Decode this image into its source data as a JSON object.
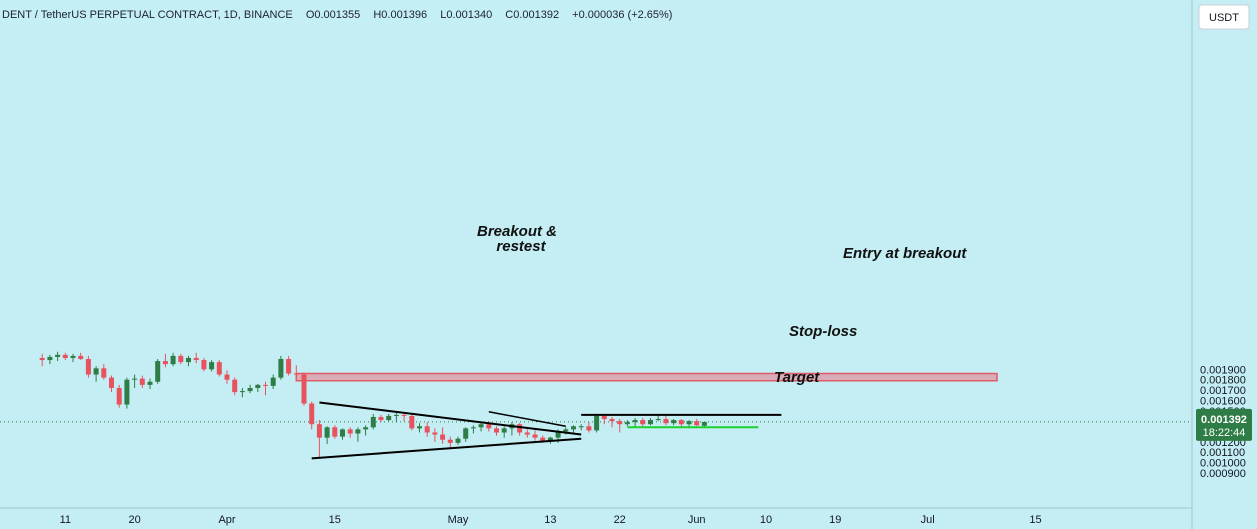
{
  "header": {
    "symbol": "DENT / TetherUS PERPETUAL CONTRACT, 1D, BINANCE",
    "open": "O0.001355",
    "high": "H0.001396",
    "low": "L0.001340",
    "close": "C0.001392",
    "change": "+0.000036 (+2.65%)"
  },
  "currency_button": "USDT",
  "price_badge": {
    "price": "0.001392",
    "countdown": "18:22:44"
  },
  "colors": {
    "background": "#c4eef3",
    "up": "#2f7d46",
    "down": "#e8525e",
    "target_fill": "#d9adb7",
    "target_border": "#e05a68",
    "stoploss": "#1bd12c",
    "lines": "#000000"
  },
  "annotations": {
    "target": "Target",
    "breakout_1": "Breakout &",
    "breakout_2": "restest",
    "entry": "Entry at breakout",
    "stoploss": "Stop-loss"
  },
  "chart_data": {
    "type": "candlestick",
    "y_ticks": [
      "0.001900",
      "0.001800",
      "0.001700",
      "0.001600",
      "0.001500",
      "0.001300",
      "0.001200",
      "0.001100",
      "0.001000",
      "0.000900"
    ],
    "y_tick_values": [
      0.0019,
      0.0018,
      0.0017,
      0.0016,
      0.0015,
      0.0013,
      0.0012,
      0.0011,
      0.001,
      0.0009
    ],
    "x_labels": [
      "11",
      "20",
      "Apr",
      "15",
      "May",
      "13",
      "22",
      "Jun",
      "10",
      "19",
      "Jul",
      "15"
    ],
    "x_label_days": [
      -21,
      -12,
      0,
      14,
      30,
      42,
      51,
      61,
      70,
      79,
      91,
      105
    ],
    "x_axis_origin": "Apr",
    "ylim": [
      0.00087,
      0.00207
    ],
    "last_price": 0.001392,
    "candles": [
      [
        -24,
        0.00201,
        0.00205,
        0.00193,
        0.00199
      ],
      [
        -23,
        0.00199,
        0.00204,
        0.00195,
        0.00202
      ],
      [
        -22,
        0.00202,
        0.00207,
        0.00198,
        0.00204
      ],
      [
        -21,
        0.00204,
        0.00206,
        0.00199,
        0.00201
      ],
      [
        -20,
        0.00201,
        0.00205,
        0.00197,
        0.00203
      ],
      [
        -19,
        0.00203,
        0.00206,
        0.00199,
        0.002
      ],
      [
        -18,
        0.002,
        0.00203,
        0.00182,
        0.00185
      ],
      [
        -17,
        0.00185,
        0.00193,
        0.00178,
        0.00191
      ],
      [
        -16,
        0.00191,
        0.00195,
        0.0018,
        0.00182
      ],
      [
        -15,
        0.00182,
        0.00184,
        0.00168,
        0.00172
      ],
      [
        -14,
        0.00172,
        0.00175,
        0.00153,
        0.00156
      ],
      [
        -13,
        0.00156,
        0.00182,
        0.00152,
        0.0018
      ],
      [
        -12,
        0.0018,
        0.00185,
        0.00172,
        0.00181
      ],
      [
        -11,
        0.00181,
        0.00184,
        0.00172,
        0.00175
      ],
      [
        -10,
        0.00175,
        0.00181,
        0.00171,
        0.00178
      ],
      [
        -9,
        0.00178,
        0.002,
        0.00176,
        0.00198
      ],
      [
        -8,
        0.00198,
        0.00205,
        0.00192,
        0.00195
      ],
      [
        -7,
        0.00195,
        0.00206,
        0.00193,
        0.00203
      ],
      [
        -6,
        0.00203,
        0.00205,
        0.00195,
        0.00197
      ],
      [
        -5,
        0.00197,
        0.00203,
        0.00193,
        0.00201
      ],
      [
        -4,
        0.00201,
        0.00206,
        0.00196,
        0.00199
      ],
      [
        -3,
        0.00199,
        0.00201,
        0.00188,
        0.0019
      ],
      [
        -2,
        0.0019,
        0.00199,
        0.00188,
        0.00197
      ],
      [
        -1,
        0.00197,
        0.00199,
        0.00183,
        0.00185
      ],
      [
        0,
        0.00185,
        0.00189,
        0.00176,
        0.0018
      ],
      [
        1,
        0.0018,
        0.00182,
        0.00165,
        0.00168
      ],
      [
        2,
        0.00168,
        0.00172,
        0.00163,
        0.00169
      ],
      [
        3,
        0.00169,
        0.00175,
        0.00167,
        0.00172
      ],
      [
        4,
        0.00172,
        0.00176,
        0.00168,
        0.00175
      ],
      [
        5,
        0.00175,
        0.00178,
        0.00165,
        0.00174
      ],
      [
        6,
        0.00174,
        0.00185,
        0.00171,
        0.00182
      ],
      [
        7,
        0.00182,
        0.00203,
        0.0018,
        0.002
      ],
      [
        8,
        0.002,
        0.00203,
        0.00184,
        0.00186
      ],
      [
        9,
        0.00186,
        0.00194,
        0.00182,
        0.00185
      ],
      [
        10,
        0.00185,
        0.00187,
        0.00155,
        0.00157
      ],
      [
        11,
        0.00157,
        0.00159,
        0.00132,
        0.00137
      ],
      [
        12,
        0.00137,
        0.00141,
        0.00105,
        0.00124
      ],
      [
        13,
        0.00124,
        0.00135,
        0.00118,
        0.00134
      ],
      [
        14,
        0.00134,
        0.00136,
        0.00123,
        0.00125
      ],
      [
        15,
        0.00125,
        0.00133,
        0.00122,
        0.00132
      ],
      [
        16,
        0.00132,
        0.00134,
        0.00124,
        0.00128
      ],
      [
        17,
        0.00128,
        0.00134,
        0.0012,
        0.00132
      ],
      [
        18,
        0.00132,
        0.00136,
        0.00126,
        0.00134
      ],
      [
        19,
        0.00134,
        0.00147,
        0.00132,
        0.00144
      ],
      [
        20,
        0.00144,
        0.00146,
        0.00139,
        0.00141
      ],
      [
        21,
        0.00141,
        0.00147,
        0.0014,
        0.00145
      ],
      [
        22,
        0.00145,
        0.00148,
        0.00139,
        0.00146
      ],
      [
        23,
        0.00146,
        0.00147,
        0.0014,
        0.00145
      ],
      [
        24,
        0.00145,
        0.00146,
        0.00131,
        0.00133
      ],
      [
        25,
        0.00133,
        0.00138,
        0.00129,
        0.00135
      ],
      [
        26,
        0.00135,
        0.00139,
        0.00125,
        0.00129
      ],
      [
        27,
        0.00129,
        0.00133,
        0.0012,
        0.00127
      ],
      [
        28,
        0.00127,
        0.00134,
        0.00118,
        0.00122
      ],
      [
        29,
        0.00122,
        0.00125,
        0.00113,
        0.00119
      ],
      [
        30,
        0.00119,
        0.00125,
        0.00117,
        0.00123
      ],
      [
        31,
        0.00123,
        0.00134,
        0.0012,
        0.00133
      ],
      [
        32,
        0.00133,
        0.00136,
        0.00128,
        0.00134
      ],
      [
        33,
        0.00134,
        0.00139,
        0.0013,
        0.00137
      ],
      [
        34,
        0.00137,
        0.0014,
        0.0013,
        0.00133
      ],
      [
        35,
        0.00133,
        0.00135,
        0.00126,
        0.00129
      ],
      [
        36,
        0.00129,
        0.00135,
        0.00124,
        0.00133
      ],
      [
        37,
        0.00133,
        0.00139,
        0.00126,
        0.00137
      ],
      [
        38,
        0.00137,
        0.00138,
        0.00126,
        0.00129
      ],
      [
        39,
        0.00129,
        0.00132,
        0.00124,
        0.00127
      ],
      [
        40,
        0.00127,
        0.00131,
        0.00121,
        0.00124
      ],
      [
        41,
        0.00124,
        0.00126,
        0.00119,
        0.00121
      ],
      [
        42,
        0.00121,
        0.00125,
        0.00118,
        0.00124
      ],
      [
        43,
        0.00124,
        0.00132,
        0.00119,
        0.0013
      ],
      [
        44,
        0.0013,
        0.00134,
        0.00127,
        0.00132
      ],
      [
        45,
        0.00132,
        0.00136,
        0.00128,
        0.00135
      ],
      [
        46,
        0.00135,
        0.00137,
        0.00131,
        0.00135
      ],
      [
        47,
        0.00135,
        0.00139,
        0.00129,
        0.00131
      ],
      [
        48,
        0.00131,
        0.00147,
        0.00129,
        0.00145
      ],
      [
        49,
        0.00145,
        0.00146,
        0.00137,
        0.00142
      ],
      [
        50,
        0.00142,
        0.00144,
        0.00134,
        0.0014
      ],
      [
        51,
        0.0014,
        0.00142,
        0.00129,
        0.00137
      ],
      [
        52,
        0.00137,
        0.00141,
        0.00135,
        0.00139
      ],
      [
        53,
        0.00139,
        0.00143,
        0.00134,
        0.00141
      ],
      [
        54,
        0.00141,
        0.00143,
        0.00135,
        0.00137
      ],
      [
        55,
        0.00137,
        0.00143,
        0.00136,
        0.00141
      ],
      [
        56,
        0.00141,
        0.00146,
        0.0014,
        0.00142
      ],
      [
        57,
        0.00142,
        0.00146,
        0.00136,
        0.00138
      ],
      [
        58,
        0.00138,
        0.00142,
        0.00136,
        0.00141
      ],
      [
        59,
        0.00141,
        0.00142,
        0.00134,
        0.00137
      ],
      [
        60,
        0.00137,
        0.00141,
        0.00133,
        0.0014
      ],
      [
        61,
        0.0014,
        0.00142,
        0.00135,
        0.00136
      ],
      [
        62,
        0.001355,
        0.001396,
        0.00134,
        0.001392
      ]
    ],
    "target_zone": {
      "from_day": 9,
      "to_day": 100,
      "low": 0.00179,
      "high": 0.00186
    },
    "upper_trendline": [
      [
        12,
        0.00158
      ],
      [
        46,
        0.00127
      ]
    ],
    "lower_trendline": [
      [
        11,
        0.00104
      ],
      [
        46,
        0.00123
      ]
    ],
    "breakout_arrow": [
      [
        34,
        0.00149
      ],
      [
        44,
        0.00135
      ]
    ],
    "entry_line": {
      "from_day": 46,
      "to_day": 72,
      "price": 0.00146
    },
    "stoploss_line": {
      "from_day": 52,
      "to_day": 69,
      "price": 0.00134
    }
  }
}
